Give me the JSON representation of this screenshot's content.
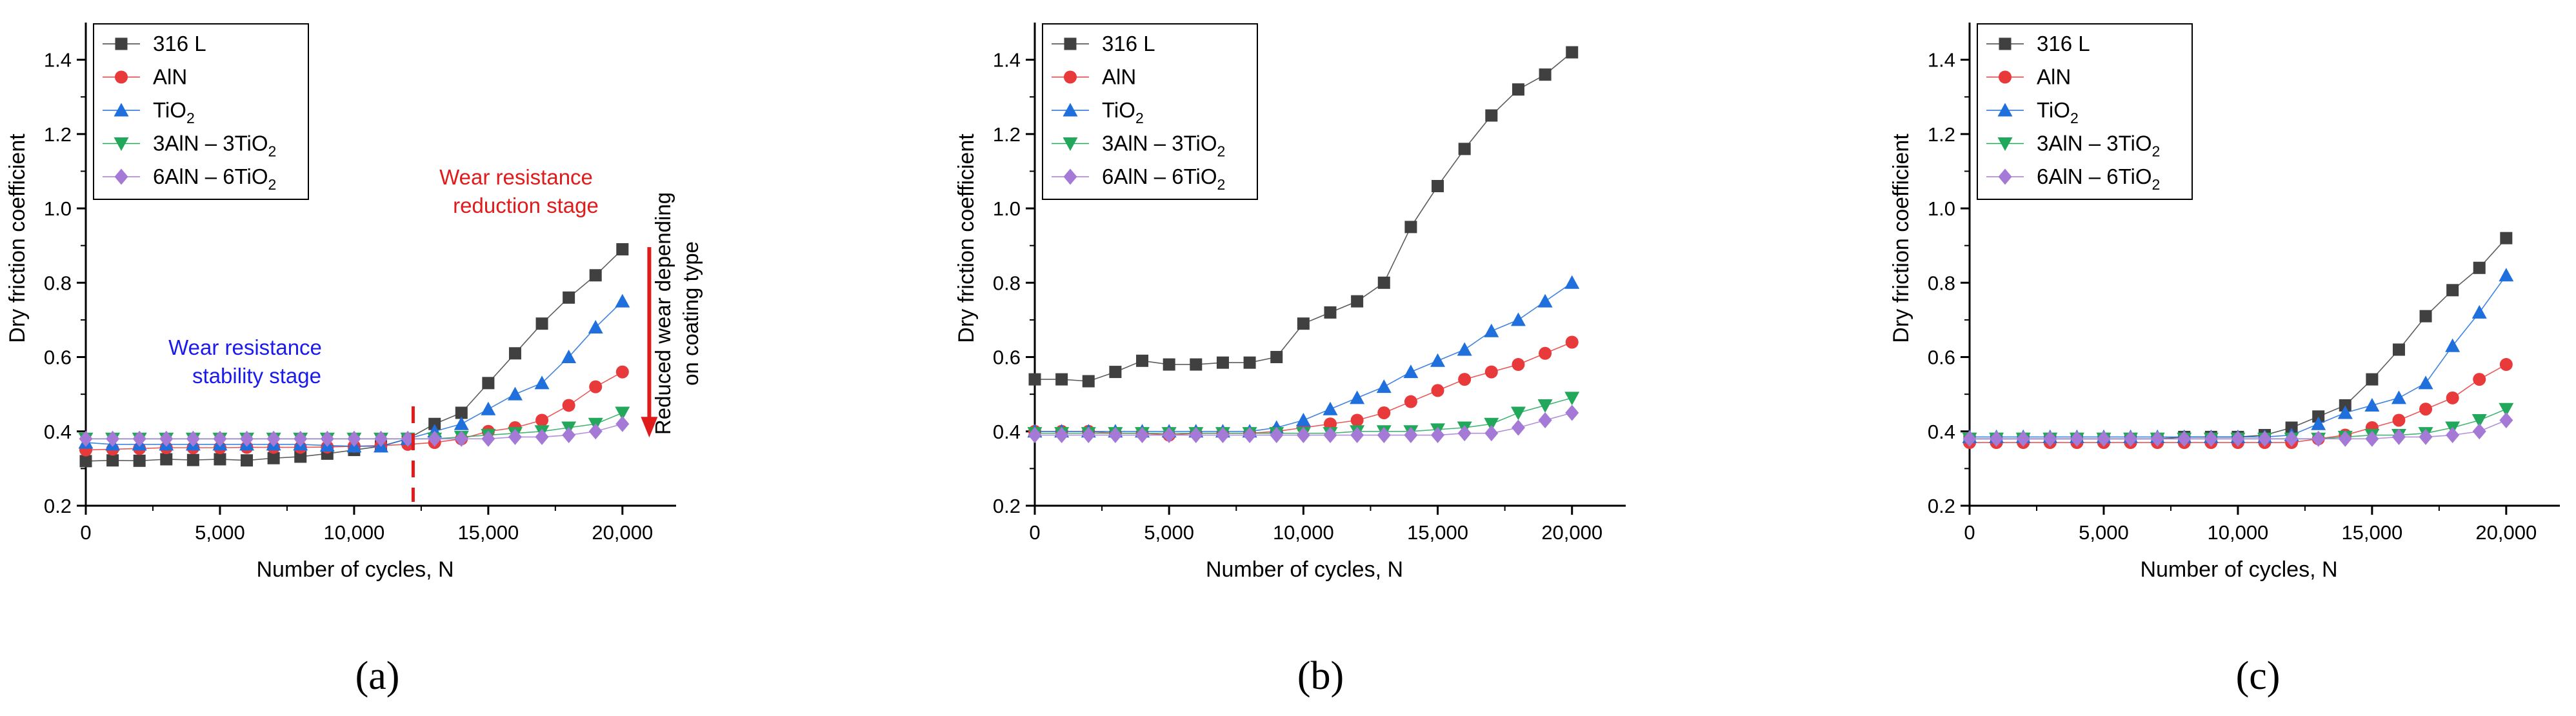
{
  "figure": {
    "panel_labels": [
      "(a)",
      "(b)",
      "(c)"
    ],
    "colors": {
      "316 L": "#404040",
      "AlN": "#e8393b",
      "TiO2": "#1f6fdc",
      "3AlN-3TiO2": "#22a85a",
      "6AlN-6TiO2": "#a57ad6",
      "annotation_red": "#e01b1b",
      "annotation_blue": "#1a1aee"
    }
  },
  "chart_data": [
    {
      "type": "line",
      "panel": "(a)",
      "xlabel": "Number of cycles, N",
      "ylabel": "Dry friction coefficient",
      "xlim": [
        0,
        22000
      ],
      "ylim": [
        0.2,
        1.5
      ],
      "xticks": [
        0,
        5000,
        10000,
        15000,
        20000
      ],
      "xtick_labels": [
        "0",
        "5,000",
        "10,000",
        "15,000",
        "20,000"
      ],
      "yticks": [
        0.2,
        0.4,
        0.6,
        0.8,
        1.0,
        1.2,
        1.4
      ],
      "ytick_labels": [
        "0.2",
        "0.4",
        "0.6",
        "0.8",
        "1.0",
        "1.2",
        "1.4"
      ],
      "legend": {
        "position": "top-left",
        "entries": [
          {
            "series": "316 L",
            "label": "316 L",
            "sub": "",
            "tail": ""
          },
          {
            "series": "AlN",
            "label": "AlN",
            "sub": "",
            "tail": ""
          },
          {
            "series": "TiO2",
            "label": "TiO",
            "sub": "2",
            "tail": ""
          },
          {
            "series": "3AlN-3TiO2",
            "label": "3AlN – 3TiO",
            "sub": "2",
            "tail": ""
          },
          {
            "series": "6AlN-6TiO2",
            "label": "6AlN – 6TiO",
            "sub": "2",
            "tail": ""
          }
        ]
      },
      "annotations": {
        "stability": [
          "Wear resistance",
          "stability stage"
        ],
        "reduction": [
          "Wear resistance",
          "reduction stage"
        ],
        "arrow_text": [
          "Reduced wear depending",
          "on coating type"
        ],
        "dashed_line_x": 12200,
        "arrow_x": 21000,
        "arrow_y": [
          1.0,
          0.38
        ]
      },
      "x": [
        0,
        1000,
        2000,
        3000,
        4000,
        5000,
        6000,
        7000,
        8000,
        9000,
        10000,
        11000,
        12000,
        13000,
        14000,
        15000,
        16000,
        17000,
        18000,
        19000,
        20000
      ],
      "series": [
        {
          "name": "316 L",
          "marker": "square",
          "values": [
            0.32,
            0.322,
            0.321,
            0.325,
            0.323,
            0.325,
            0.322,
            0.328,
            0.332,
            0.34,
            0.35,
            0.36,
            0.38,
            0.42,
            0.45,
            0.53,
            0.61,
            0.69,
            0.76,
            0.82,
            0.89
          ]
        },
        {
          "name": "AlN",
          "marker": "circle",
          "values": [
            0.35,
            0.352,
            0.354,
            0.356,
            0.356,
            0.356,
            0.357,
            0.357,
            0.357,
            0.358,
            0.36,
            0.362,
            0.365,
            0.37,
            0.38,
            0.4,
            0.41,
            0.43,
            0.47,
            0.52,
            0.56
          ]
        },
        {
          "name": "TiO2",
          "marker": "triangle-up",
          "values": [
            0.37,
            0.365,
            0.365,
            0.365,
            0.365,
            0.365,
            0.365,
            0.365,
            0.365,
            0.362,
            0.36,
            0.36,
            0.38,
            0.4,
            0.42,
            0.46,
            0.5,
            0.53,
            0.6,
            0.68,
            0.75
          ]
        },
        {
          "name": "3AlN-3TiO2",
          "marker": "triangle-down",
          "values": [
            0.38,
            0.38,
            0.38,
            0.38,
            0.38,
            0.38,
            0.38,
            0.38,
            0.38,
            0.38,
            0.38,
            0.38,
            0.38,
            0.38,
            0.385,
            0.39,
            0.395,
            0.4,
            0.41,
            0.42,
            0.45
          ]
        },
        {
          "name": "6AlN-6TiO2",
          "marker": "diamond",
          "values": [
            0.38,
            0.38,
            0.38,
            0.38,
            0.38,
            0.38,
            0.38,
            0.38,
            0.38,
            0.38,
            0.38,
            0.38,
            0.38,
            0.38,
            0.38,
            0.38,
            0.385,
            0.385,
            0.39,
            0.4,
            0.42
          ]
        }
      ]
    },
    {
      "type": "line",
      "panel": "(b)",
      "xlabel": "Number of cycles, N",
      "ylabel": "Dry friction coefficient",
      "xlim": [
        0,
        22000
      ],
      "ylim": [
        0.2,
        1.5
      ],
      "xticks": [
        0,
        5000,
        10000,
        15000,
        20000
      ],
      "xtick_labels": [
        "0",
        "5,000",
        "10,000",
        "15,000",
        "20,000"
      ],
      "yticks": [
        0.2,
        0.4,
        0.6,
        0.8,
        1.0,
        1.2,
        1.4
      ],
      "ytick_labels": [
        "0.2",
        "0.4",
        "0.6",
        "0.8",
        "1.0",
        "1.2",
        "1.4"
      ],
      "legend": {
        "position": "top-left",
        "entries": [
          {
            "series": "316 L",
            "label": "316 L",
            "sub": "",
            "tail": ""
          },
          {
            "series": "AlN",
            "label": "AlN",
            "sub": "",
            "tail": ""
          },
          {
            "series": "TiO2",
            "label": "TiO",
            "sub": "2",
            "tail": ""
          },
          {
            "series": "3AlN-3TiO2",
            "label": "3AlN – 3TiO",
            "sub": "2",
            "tail": ""
          },
          {
            "series": "6AlN-6TiO2",
            "label": "6AlN – 6TiO",
            "sub": "2",
            "tail": ""
          }
        ]
      },
      "x": [
        0,
        1000,
        2000,
        3000,
        4000,
        5000,
        6000,
        7000,
        8000,
        9000,
        10000,
        11000,
        12000,
        13000,
        14000,
        15000,
        16000,
        17000,
        18000,
        19000,
        20000
      ],
      "series": [
        {
          "name": "316 L",
          "marker": "square",
          "values": [
            0.54,
            0.54,
            0.535,
            0.56,
            0.59,
            0.58,
            0.58,
            0.585,
            0.585,
            0.6,
            0.69,
            0.72,
            0.75,
            0.8,
            0.95,
            1.06,
            1.16,
            1.25,
            1.32,
            1.36,
            1.42
          ]
        },
        {
          "name": "AlN",
          "marker": "circle",
          "values": [
            0.4,
            0.4,
            0.4,
            0.395,
            0.395,
            0.39,
            0.395,
            0.395,
            0.395,
            0.4,
            0.41,
            0.42,
            0.43,
            0.45,
            0.48,
            0.51,
            0.54,
            0.56,
            0.58,
            0.61,
            0.64
          ]
        },
        {
          "name": "TiO2",
          "marker": "triangle-up",
          "values": [
            0.4,
            0.4,
            0.4,
            0.4,
            0.4,
            0.4,
            0.4,
            0.4,
            0.4,
            0.41,
            0.43,
            0.46,
            0.49,
            0.52,
            0.56,
            0.59,
            0.62,
            0.67,
            0.7,
            0.75,
            0.8
          ]
        },
        {
          "name": "3AlN-3TiO2",
          "marker": "triangle-down",
          "values": [
            0.395,
            0.395,
            0.395,
            0.395,
            0.395,
            0.395,
            0.395,
            0.395,
            0.395,
            0.395,
            0.395,
            0.395,
            0.4,
            0.4,
            0.4,
            0.405,
            0.41,
            0.42,
            0.45,
            0.47,
            0.49
          ]
        },
        {
          "name": "6AlN-6TiO2",
          "marker": "diamond",
          "values": [
            0.39,
            0.39,
            0.39,
            0.39,
            0.39,
            0.39,
            0.39,
            0.39,
            0.39,
            0.39,
            0.39,
            0.39,
            0.39,
            0.39,
            0.39,
            0.39,
            0.395,
            0.395,
            0.41,
            0.43,
            0.45
          ]
        }
      ]
    },
    {
      "type": "line",
      "panel": "(c)",
      "xlabel": "Number of cycles, N",
      "ylabel": "Dry friction coefficient",
      "xlim": [
        0,
        22000
      ],
      "ylim": [
        0.2,
        1.5
      ],
      "xticks": [
        0,
        5000,
        10000,
        15000,
        20000
      ],
      "xtick_labels": [
        "0",
        "5,000",
        "10,000",
        "15,000",
        "20,000"
      ],
      "yticks": [
        0.2,
        0.4,
        0.6,
        0.8,
        1.0,
        1.2,
        1.4
      ],
      "ytick_labels": [
        "0.2",
        "0.4",
        "0.6",
        "0.8",
        "1.0",
        "1.2",
        "1.4"
      ],
      "legend": {
        "position": "top-left",
        "entries": [
          {
            "series": "316 L",
            "label": "316 L",
            "sub": "",
            "tail": ""
          },
          {
            "series": "AlN",
            "label": "AlN",
            "sub": "",
            "tail": ""
          },
          {
            "series": "TiO2",
            "label": "TiO",
            "sub": "2",
            "tail": ""
          },
          {
            "series": "3AlN-3TiO2",
            "label": "3AlN – 3TiO",
            "sub": "2",
            "tail": ""
          },
          {
            "series": "6AlN-6TiO2",
            "label": "6AlN – 6TiO",
            "sub": "2",
            "tail": ""
          }
        ]
      },
      "x": [
        0,
        1000,
        2000,
        3000,
        4000,
        5000,
        6000,
        7000,
        8000,
        9000,
        10000,
        11000,
        12000,
        13000,
        14000,
        15000,
        16000,
        17000,
        18000,
        19000,
        20000
      ],
      "series": [
        {
          "name": "316 L",
          "marker": "square",
          "values": [
            0.38,
            0.38,
            0.38,
            0.38,
            0.38,
            0.38,
            0.38,
            0.38,
            0.385,
            0.385,
            0.385,
            0.39,
            0.41,
            0.44,
            0.47,
            0.54,
            0.62,
            0.71,
            0.78,
            0.84,
            0.92
          ]
        },
        {
          "name": "AlN",
          "marker": "circle",
          "values": [
            0.37,
            0.37,
            0.37,
            0.37,
            0.37,
            0.37,
            0.37,
            0.37,
            0.37,
            0.37,
            0.37,
            0.37,
            0.37,
            0.38,
            0.39,
            0.41,
            0.43,
            0.46,
            0.49,
            0.54,
            0.58
          ]
        },
        {
          "name": "TiO2",
          "marker": "triangle-up",
          "values": [
            0.385,
            0.385,
            0.385,
            0.385,
            0.385,
            0.385,
            0.385,
            0.385,
            0.385,
            0.385,
            0.385,
            0.385,
            0.39,
            0.42,
            0.45,
            0.47,
            0.49,
            0.53,
            0.63,
            0.72,
            0.82
          ]
        },
        {
          "name": "3AlN-3TiO2",
          "marker": "triangle-down",
          "values": [
            0.38,
            0.38,
            0.38,
            0.38,
            0.38,
            0.38,
            0.38,
            0.38,
            0.38,
            0.38,
            0.38,
            0.38,
            0.38,
            0.38,
            0.385,
            0.39,
            0.39,
            0.395,
            0.41,
            0.43,
            0.46
          ]
        },
        {
          "name": "6AlN-6TiO2",
          "marker": "diamond",
          "values": [
            0.38,
            0.38,
            0.38,
            0.38,
            0.38,
            0.38,
            0.38,
            0.38,
            0.38,
            0.38,
            0.38,
            0.38,
            0.38,
            0.38,
            0.38,
            0.38,
            0.385,
            0.385,
            0.39,
            0.4,
            0.43
          ]
        }
      ]
    }
  ]
}
